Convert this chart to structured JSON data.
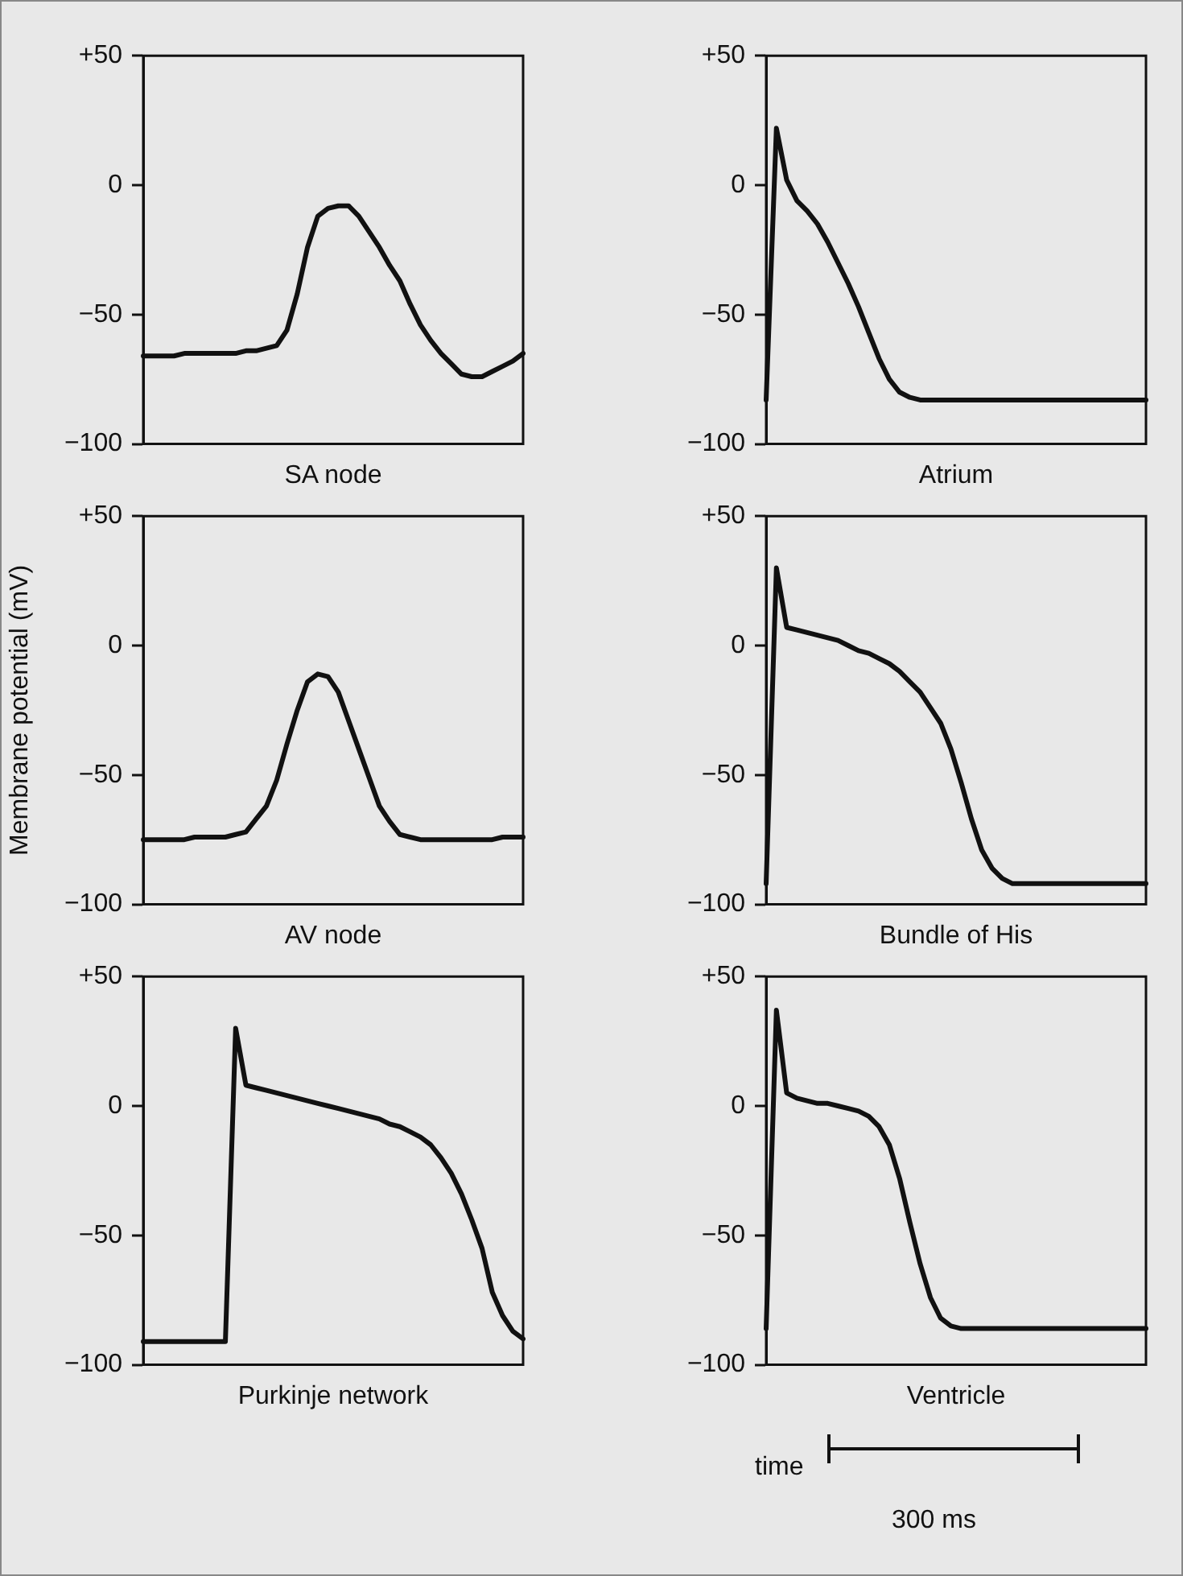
{
  "chart_data": [
    {
      "type": "line",
      "xlabel": "SA node",
      "categories": [
        null,
        null,
        null,
        null,
        null,
        null,
        null,
        null,
        null,
        null,
        null,
        null,
        null,
        null,
        null,
        null,
        null,
        null,
        null,
        null,
        null,
        null,
        null,
        null,
        null,
        null,
        null,
        null,
        null,
        null,
        null,
        null,
        null,
        null,
        null,
        null,
        null,
        null
      ],
      "ylim": [
        -100,
        50
      ],
      "yticks": [
        {
          "value": 50,
          "label": "+50"
        },
        {
          "value": 0,
          "label": "0"
        },
        {
          "value": -50,
          "label": "−50"
        },
        {
          "value": -100,
          "label": "−100"
        }
      ],
      "tick_labels": "y",
      "grid": false,
      "legend": false,
      "marker": "none",
      "line_style": "solid",
      "series": [
        {
          "color": "#111111",
          "values": [
            -66,
            -66,
            -66,
            -66,
            -65,
            -65,
            -65,
            -65,
            -65,
            -65,
            -64,
            -64,
            -63,
            -62,
            -56,
            -42,
            -24,
            -12,
            -9,
            -8,
            -8,
            -12,
            -18,
            -24,
            -31,
            -37,
            -46,
            -54,
            -60,
            -65,
            -69,
            -73,
            -74,
            -74,
            -72,
            -70,
            -68,
            -65
          ]
        }
      ]
    },
    {
      "type": "line",
      "xlabel": "Atrium",
      "categories": [
        null,
        null,
        null,
        null,
        null,
        null,
        null,
        null,
        null,
        null,
        null,
        null,
        null,
        null,
        null,
        null,
        null,
        null,
        null,
        null,
        null,
        null,
        null,
        null,
        null,
        null,
        null,
        null,
        null,
        null,
        null,
        null,
        null,
        null,
        null,
        null,
        null,
        null
      ],
      "ylim": [
        -100,
        50
      ],
      "yticks": [
        {
          "value": 50,
          "label": "+50"
        },
        {
          "value": 0,
          "label": "0"
        },
        {
          "value": -50,
          "label": "−50"
        },
        {
          "value": -100,
          "label": "−100"
        }
      ],
      "tick_labels": "y",
      "grid": false,
      "legend": false,
      "marker": "none",
      "line_style": "solid",
      "series": [
        {
          "color": "#111111",
          "values": [
            -83,
            22,
            2,
            -6,
            -10,
            -15,
            -22,
            -30,
            -38,
            -47,
            -57,
            -67,
            -75,
            -80,
            -82,
            -83,
            -83,
            -83,
            -83,
            -83,
            -83,
            -83,
            -83,
            -83,
            -83,
            -83,
            -83,
            -83,
            -83,
            -83,
            -83,
            -83,
            -83,
            -83,
            -83,
            -83,
            -83,
            -83
          ]
        }
      ]
    },
    {
      "type": "line",
      "xlabel": "AV node",
      "ylabel": "Membrane potential (mV)",
      "categories": [
        null,
        null,
        null,
        null,
        null,
        null,
        null,
        null,
        null,
        null,
        null,
        null,
        null,
        null,
        null,
        null,
        null,
        null,
        null,
        null,
        null,
        null,
        null,
        null,
        null,
        null,
        null,
        null,
        null,
        null,
        null,
        null,
        null,
        null,
        null,
        null,
        null,
        null
      ],
      "ylim": [
        -100,
        50
      ],
      "yticks": [
        {
          "value": 50,
          "label": "+50"
        },
        {
          "value": 0,
          "label": "0"
        },
        {
          "value": -50,
          "label": "−50"
        },
        {
          "value": -100,
          "label": "−100"
        }
      ],
      "tick_labels": "y",
      "grid": false,
      "legend": false,
      "marker": "none",
      "line_style": "solid",
      "series": [
        {
          "color": "#111111",
          "values": [
            -75,
            -75,
            -75,
            -75,
            -75,
            -74,
            -74,
            -74,
            -74,
            -73,
            -72,
            -67,
            -62,
            -52,
            -38,
            -25,
            -14,
            -11,
            -12,
            -18,
            -29,
            -40,
            -51,
            -62,
            -68,
            -73,
            -74,
            -75,
            -75,
            -75,
            -75,
            -75,
            -75,
            -75,
            -75,
            -74,
            -74,
            -74
          ]
        }
      ]
    },
    {
      "type": "line",
      "xlabel": "Bundle of His",
      "categories": [
        null,
        null,
        null,
        null,
        null,
        null,
        null,
        null,
        null,
        null,
        null,
        null,
        null,
        null,
        null,
        null,
        null,
        null,
        null,
        null,
        null,
        null,
        null,
        null,
        null,
        null,
        null,
        null,
        null,
        null,
        null,
        null,
        null,
        null,
        null,
        null,
        null,
        null
      ],
      "ylim": [
        -100,
        50
      ],
      "yticks": [
        {
          "value": 50,
          "label": "+50"
        },
        {
          "value": 0,
          "label": "0"
        },
        {
          "value": -50,
          "label": "−50"
        },
        {
          "value": -100,
          "label": "−100"
        }
      ],
      "tick_labels": "y",
      "grid": false,
      "legend": false,
      "marker": "none",
      "line_style": "solid",
      "series": [
        {
          "color": "#111111",
          "values": [
            -92,
            30,
            7,
            6,
            5,
            4,
            3,
            2,
            0,
            -2,
            -3,
            -5,
            -7,
            -10,
            -14,
            -18,
            -24,
            -30,
            -40,
            -53,
            -67,
            -79,
            -86,
            -90,
            -92,
            -92,
            -92,
            -92,
            -92,
            -92,
            -92,
            -92,
            -92,
            -92,
            -92,
            -92,
            -92,
            -92
          ]
        }
      ]
    },
    {
      "type": "line",
      "xlabel": "Purkinje network",
      "categories": [
        null,
        null,
        null,
        null,
        null,
        null,
        null,
        null,
        null,
        null,
        null,
        null,
        null,
        null,
        null,
        null,
        null,
        null,
        null,
        null,
        null,
        null,
        null,
        null,
        null,
        null,
        null,
        null,
        null,
        null,
        null,
        null,
        null,
        null,
        null,
        null,
        null,
        null
      ],
      "ylim": [
        -100,
        50
      ],
      "yticks": [
        {
          "value": 50,
          "label": "+50"
        },
        {
          "value": 0,
          "label": "0"
        },
        {
          "value": -50,
          "label": "−50"
        },
        {
          "value": -100,
          "label": "−100"
        }
      ],
      "tick_labels": "y",
      "grid": false,
      "legend": false,
      "marker": "none",
      "line_style": "solid",
      "series": [
        {
          "color": "#111111",
          "values": [
            -91,
            -91,
            -91,
            -91,
            -91,
            -91,
            -91,
            -91,
            -91,
            30,
            8,
            7,
            6,
            5,
            4,
            3,
            2,
            1,
            0,
            -1,
            -2,
            -3,
            -4,
            -5,
            -7,
            -8,
            -10,
            -12,
            -15,
            -20,
            -26,
            -34,
            -44,
            -55,
            -72,
            -81,
            -87,
            -90
          ]
        }
      ]
    },
    {
      "type": "line",
      "xlabel": "Ventricle",
      "categories": [
        null,
        null,
        null,
        null,
        null,
        null,
        null,
        null,
        null,
        null,
        null,
        null,
        null,
        null,
        null,
        null,
        null,
        null,
        null,
        null,
        null,
        null,
        null,
        null,
        null,
        null,
        null,
        null,
        null,
        null,
        null,
        null,
        null,
        null,
        null,
        null,
        null,
        null
      ],
      "ylim": [
        -100,
        50
      ],
      "yticks": [
        {
          "value": 50,
          "label": "+50"
        },
        {
          "value": 0,
          "label": "0"
        },
        {
          "value": -50,
          "label": "−50"
        },
        {
          "value": -100,
          "label": "−100"
        }
      ],
      "tick_labels": "y",
      "grid": false,
      "legend": false,
      "marker": "none",
      "line_style": "solid",
      "annotations": [
        "time",
        "300 ms"
      ],
      "series": [
        {
          "color": "#111111",
          "values": [
            -86,
            37,
            5,
            3,
            2,
            1,
            1,
            0,
            -1,
            -2,
            -4,
            -8,
            -15,
            -28,
            -45,
            -61,
            -74,
            -82,
            -85,
            -86,
            -86,
            -86,
            -86,
            -86,
            -86,
            -86,
            -86,
            -86,
            -86,
            -86,
            -86,
            -86,
            -86,
            -86,
            -86,
            -86,
            -86,
            -86
          ]
        }
      ]
    }
  ]
}
